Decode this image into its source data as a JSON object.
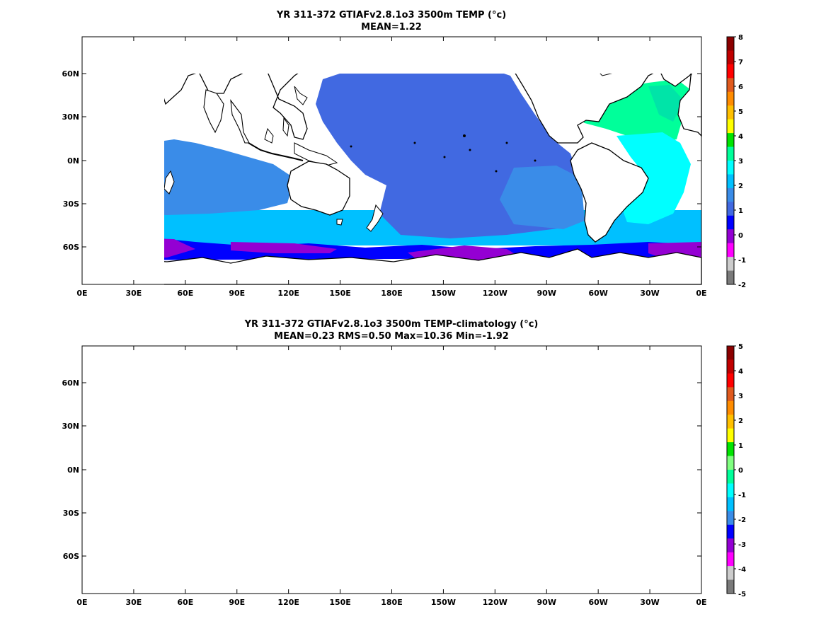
{
  "panels": [
    {
      "title": "YR 311-372 GTIAFv2.8.1o3 3500m TEMP (°c)",
      "subtitle": "MEAN=1.22",
      "colorbar": {
        "ticks": [
          "8",
          "7",
          "6",
          "5",
          "4",
          "3",
          "2",
          "1",
          "0",
          "-1",
          "-2"
        ],
        "colors": [
          "#8b0000",
          "#c00000",
          "#ff0000",
          "#e05a1e",
          "#ff8c00",
          "#ffc000",
          "#ffff00",
          "#00e400",
          "#00ff9a",
          "#00ffff",
          "#00c0ff",
          "#3a8ce8",
          "#4169e1",
          "#0000ff",
          "#9400d3",
          "#ff00ff",
          "#cccccc",
          "#7a7a7a"
        ]
      }
    },
    {
      "title": "YR 311-372 GTIAFv2.8.1o3 3500m TEMP-climatology (°c)",
      "subtitle": "MEAN=0.23   RMS=0.50   Max=10.36   Min=-1.92",
      "colorbar": {
        "ticks": [
          "5",
          "4",
          "3",
          "2",
          "1",
          "0",
          "-1",
          "-2",
          "-3",
          "-4",
          "-5"
        ],
        "colors": [
          "#8b0000",
          "#c00000",
          "#ff0000",
          "#e05a1e",
          "#ff8c00",
          "#ffc000",
          "#ffff00",
          "#00e400",
          "#80ff80",
          "#00ff9a",
          "#00ffff",
          "#00c0ff",
          "#3a8ce8",
          "#0000ff",
          "#9400d3",
          "#ff00ff",
          "#cccccc",
          "#7a7a7a"
        ]
      }
    }
  ],
  "axes": {
    "lon_ticks": [
      "0E",
      "30E",
      "60E",
      "90E",
      "120E",
      "150E",
      "180E",
      "150W",
      "120W",
      "90W",
      "60W",
      "30W",
      "0E"
    ],
    "lat_ticks": [
      "60N",
      "30N",
      "0N",
      "30S",
      "60S"
    ]
  },
  "colors": {
    "panel1": {
      "pacific": "#4169e1",
      "indian": "#3a8ce8",
      "south_band": "#00c0ff",
      "deep": "#0000ff",
      "antarctic": "#9400d3",
      "n_atlantic": "#00ff9a",
      "s_atlantic": "#00ffff",
      "mid_atlantic": "#00e4a8"
    },
    "panel2": {
      "pacific": "#00ff9a",
      "indian": "#80ff80",
      "southern": "#00e400",
      "yellow": "#ffff00",
      "atlantic_green": "#00e400",
      "atlantic_yellow": "#ffff00",
      "orange": "#ffc000"
    }
  }
}
